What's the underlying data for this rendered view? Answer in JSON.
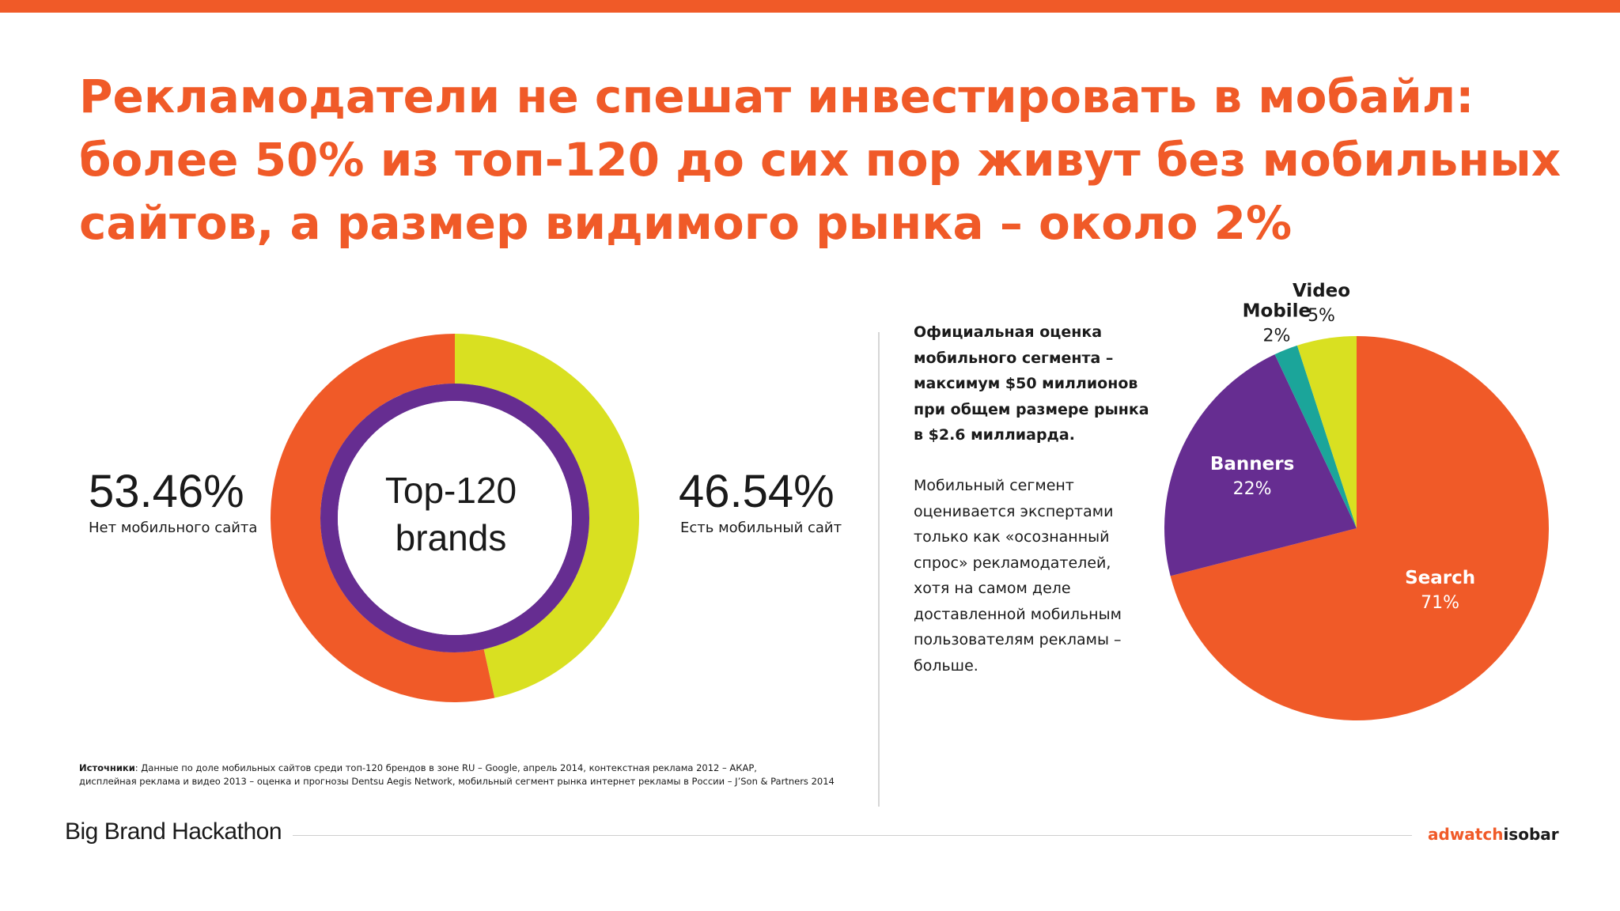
{
  "slide": {
    "title_lines": [
      "Рекламодатели не спешат инвестировать в мобайл:",
      "более 50% из топ-120 до сих пор живут без мобильных",
      "сайтов, а размер видимого рынка – около 2%"
    ],
    "note_bold_lines": [
      "Официальная оценка",
      "мобильного сегмента –",
      "максимум $50 миллионов",
      "при общем размере рынка",
      "в $2.6 миллиарда."
    ],
    "note_lines": [
      "Мобильный сегмент",
      "оценивается экспертами",
      "только как «осознанный",
      "спрос» рекламодателей,",
      "хотя на самом деле",
      "доставленной мобильным",
      "пользователям рекламы –",
      "больше."
    ],
    "sources_label": "Источники",
    "sources_line1": ": Данные по доле мобильных сайтов среди топ-120 брендов в зоне RU – Google, апрель 2014, контекстная реклама 2012 – АКАР,",
    "sources_line2": "дисплейная реклама и видео 2013 – оценка и прогнозы Dentsu Aegis Network, мобильный сегмент рынка интернет рекламы в России – J’Son & Partners 2014",
    "footer_brand": "Big Brand Hackathon",
    "footer_logo_a": "adwatch",
    "footer_logo_b": "isobar"
  },
  "colors": {
    "accent": "#f05a28",
    "yellow": "#d9e021",
    "purple": "#662d91",
    "teal": "#1ba59a",
    "text": "#1a1a1a"
  },
  "chart_data": [
    {
      "type": "pie",
      "variant": "donut",
      "center_text": [
        "Top-120",
        "brands"
      ],
      "slices": [
        {
          "label": "Нет мобильного сайта",
          "value": 53.46,
          "display": "53.46%",
          "color": "#f05a28"
        },
        {
          "label": "Есть мобильный сайт",
          "value": 46.54,
          "display": "46.54%",
          "color": "#d9e021"
        }
      ]
    },
    {
      "type": "pie",
      "slices": [
        {
          "label": "Search",
          "value": 71,
          "display": "71%",
          "color": "#f05a28"
        },
        {
          "label": "Banners",
          "value": 22,
          "display": "22%",
          "color": "#662d91"
        },
        {
          "label": "Mobile",
          "value": 2,
          "display": "2%",
          "color": "#1ba59a"
        },
        {
          "label": "Video",
          "value": 5,
          "display": "5%",
          "color": "#d9e021"
        }
      ]
    }
  ]
}
